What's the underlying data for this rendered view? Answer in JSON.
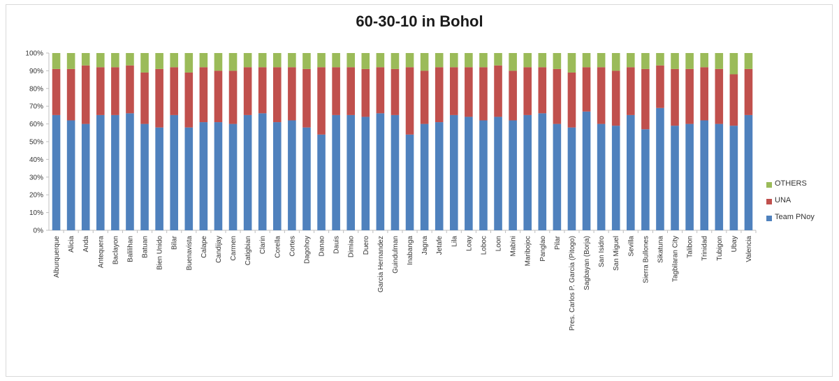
{
  "chart_data": {
    "type": "bar",
    "stacked": "percent",
    "title": "60-30-10 in Bohol",
    "xlabel": "",
    "ylabel": "",
    "ylim": [
      0,
      100
    ],
    "yticks": [
      "0%",
      "10%",
      "20%",
      "30%",
      "40%",
      "50%",
      "60%",
      "70%",
      "80%",
      "90%",
      "100%"
    ],
    "grid": false,
    "legend_position": "right",
    "categories": [
      "Alburquerque",
      "Alicia",
      "Anda",
      "Antequera",
      "Baclayon",
      "Balilihan",
      "Batuan",
      "Bien Unido",
      "Bilar",
      "Buenavista",
      "Calape",
      "Candijay",
      "Carmen",
      "Catigbian",
      "Clarin",
      "Corella",
      "Cortes",
      "Dagohoy",
      "Danao",
      "Dauis",
      "Dimiao",
      "Duero",
      "Garcia Hernandez",
      "Guindulman",
      "Inabanga",
      "Jagna",
      "Jetafe",
      "Lila",
      "Loay",
      "Loboc",
      "Loon",
      "Mabini",
      "Maribojoc",
      "Panglao",
      "Pilar",
      "Pres. Carlos P. Garcia (Pitogo)",
      "Sagbayan (Borja)",
      "San Isidro",
      "San Miguel",
      "Sevilla",
      "Sierra Bullones",
      "Sikatuna",
      "Tagbilaran City",
      "Talibon",
      "Trinidad",
      "Tubigon",
      "Ubay",
      "Valencia"
    ],
    "series": [
      {
        "name": "Team PNoy",
        "color": "#4f81bd",
        "values": [
          65,
          62,
          60,
          65,
          65,
          66,
          60,
          58,
          65,
          58,
          61,
          61,
          60,
          65,
          66,
          61,
          62,
          58,
          54,
          65,
          65,
          64,
          66,
          65,
          54,
          60,
          61,
          65,
          64,
          62,
          64,
          62,
          65,
          66,
          60,
          58,
          67,
          60,
          59,
          65,
          57,
          69,
          59,
          60,
          62,
          60,
          59,
          65
        ]
      },
      {
        "name": "UNA",
        "color": "#c0504d",
        "values": [
          26,
          29,
          33,
          27,
          27,
          27,
          29,
          33,
          27,
          31,
          31,
          29,
          30,
          27,
          26,
          31,
          30,
          33,
          38,
          27,
          27,
          27,
          26,
          26,
          38,
          30,
          31,
          27,
          28,
          30,
          29,
          28,
          27,
          26,
          31,
          31,
          25,
          32,
          31,
          27,
          34,
          24,
          32,
          31,
          30,
          31,
          29,
          26
        ]
      },
      {
        "name": "OTHERS",
        "color": "#9bbb59",
        "values": [
          9,
          9,
          7,
          8,
          8,
          7,
          11,
          9,
          8,
          11,
          8,
          10,
          10,
          8,
          8,
          8,
          8,
          9,
          8,
          8,
          8,
          9,
          8,
          9,
          8,
          10,
          8,
          8,
          8,
          8,
          7,
          10,
          8,
          8,
          9,
          11,
          8,
          8,
          10,
          8,
          9,
          7,
          9,
          9,
          8,
          9,
          12,
          9
        ]
      }
    ]
  }
}
